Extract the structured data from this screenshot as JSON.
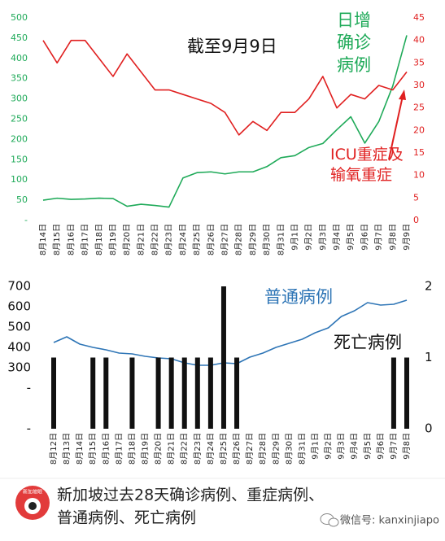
{
  "chart_data": [
    {
      "type": "line",
      "annotation": "截至9月9日",
      "categories": [
        "8月14日",
        "8月15日",
        "8月16日",
        "8月17日",
        "8月18日",
        "8月19日",
        "8月20日",
        "8月21日",
        "8月22日",
        "8月23日",
        "8月24日",
        "8月25日",
        "8月26日",
        "8月27日",
        "8月28日",
        "8月29日",
        "8月30日",
        "8月31日",
        "9月1日",
        "9月2日",
        "9月3日",
        "9月4日",
        "9月5日",
        "9月6日",
        "9月7日",
        "9月8日",
        "9月9日"
      ],
      "series": [
        {
          "name": "日增确诊病例",
          "color": "#1faa59",
          "axis": "y",
          "values": [
            50,
            55,
            52,
            53,
            55,
            54,
            35,
            40,
            37,
            33,
            105,
            118,
            120,
            115,
            120,
            120,
            133,
            155,
            160,
            180,
            190,
            224,
            256,
            191,
            244,
            332,
            457
          ]
        },
        {
          "name": "ICU重症及输氧重症",
          "color": "#e02020",
          "axis": "y2",
          "values": [
            40,
            35,
            40,
            40,
            36,
            32,
            37,
            33,
            29,
            29,
            28,
            27,
            26,
            24,
            19,
            22,
            20,
            24,
            24,
            27,
            32,
            25,
            28,
            27,
            30,
            29,
            33
          ]
        }
      ],
      "ylim": [
        0,
        500
      ],
      "yticks": [
        {
          "value": 0,
          "label": "-"
        },
        50,
        100,
        150,
        200,
        250,
        300,
        350,
        400,
        450,
        500
      ],
      "y2lim": [
        0,
        45
      ],
      "y2ticks": [
        0,
        5,
        10,
        15,
        20,
        25,
        30,
        35,
        40,
        45
      ]
    },
    {
      "type": "bar-line",
      "categories": [
        "8月12日",
        "8月13日",
        "8月14日",
        "8月15日",
        "8月16日",
        "8月17日",
        "8月18日",
        "8月19日",
        "8月20日",
        "8月21日",
        "8月22日",
        "8月23日",
        "8月24日",
        "8月25日",
        "8月26日",
        "8月27日",
        "8月28日",
        "8月29日",
        "8月30日",
        "8月31日",
        "9月1日",
        "9月2日",
        "9月3日",
        "9月4日",
        "9月5日",
        "9月6日",
        "9月7日",
        "9月8日"
      ],
      "series": [
        {
          "name": "普通病例",
          "color": "#2e75b6",
          "axis": "y",
          "kind": "line",
          "values": [
            424,
            452,
            416,
            400,
            388,
            372,
            368,
            356,
            348,
            344,
            324,
            312,
            312,
            324,
            320,
            352,
            372,
            400,
            420,
            440,
            472,
            496,
            552,
            580,
            620,
            608,
            612,
            632
          ]
        },
        {
          "name": "死亡病例",
          "color": "#111111",
          "axis": "y2",
          "kind": "bar",
          "values": [
            1,
            0,
            0,
            1,
            1,
            0,
            1,
            0,
            1,
            1,
            1,
            1,
            1,
            2,
            1,
            0,
            0,
            0,
            0,
            0,
            0,
            0,
            0,
            0,
            0,
            0,
            1,
            1
          ]
        }
      ],
      "ylim": [
        0,
        700
      ],
      "yticks": [
        {
          "value": 0,
          "label": "-"
        },
        {
          "value": 200,
          "label": "-"
        },
        300,
        400,
        500,
        600,
        700
      ],
      "y2lim": [
        0,
        2
      ],
      "y2ticks": [
        0,
        1,
        2
      ]
    }
  ],
  "footer": {
    "logo": "新加坡眼",
    "caption_lines": [
      "新加坡过去28天确诊病例、重症病例、",
      "普通病例、死亡病例"
    ],
    "wechat": "微信号: kanxinjiapo"
  }
}
